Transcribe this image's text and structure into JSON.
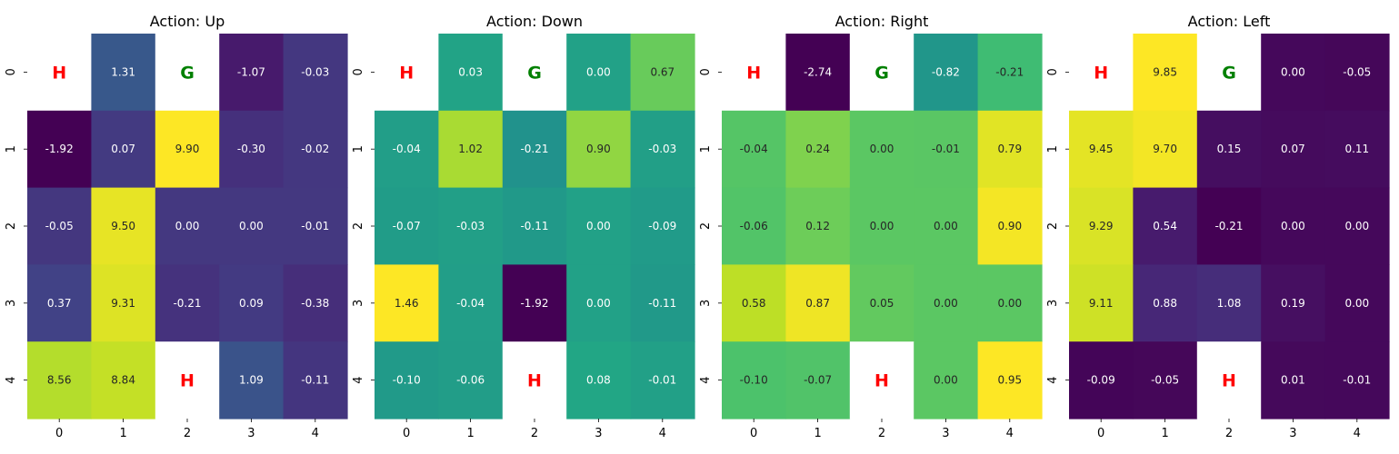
{
  "chart_data": [
    {
      "type": "heatmap",
      "title": "Action: Up",
      "x_ticks": [
        "0",
        "1",
        "2",
        "3",
        "4"
      ],
      "y_ticks": [
        "0",
        "1",
        "2",
        "3",
        "4"
      ],
      "colormap": "viridis",
      "vmin": -1.92,
      "vmax": 9.9,
      "values": [
        [
          "H",
          1.31,
          "G",
          -1.07,
          -0.03
        ],
        [
          -1.92,
          0.07,
          9.9,
          -0.3,
          -0.02
        ],
        [
          -0.05,
          9.5,
          0.0,
          0.0,
          -0.01
        ],
        [
          0.37,
          9.31,
          -0.21,
          0.09,
          -0.38
        ],
        [
          8.56,
          8.84,
          "H",
          1.09,
          -0.11
        ]
      ]
    },
    {
      "type": "heatmap",
      "title": "Action: Down",
      "x_ticks": [
        "0",
        "1",
        "2",
        "3",
        "4"
      ],
      "y_ticks": [
        "0",
        "1",
        "2",
        "3",
        "4"
      ],
      "colormap": "viridis",
      "vmin": -1.92,
      "vmax": 1.46,
      "values": [
        [
          "H",
          0.03,
          "G",
          0.0,
          0.67
        ],
        [
          -0.04,
          1.02,
          -0.21,
          0.9,
          -0.03
        ],
        [
          -0.07,
          -0.03,
          -0.11,
          0.0,
          -0.09
        ],
        [
          1.46,
          -0.04,
          -1.92,
          0.0,
          -0.11
        ],
        [
          -0.1,
          -0.06,
          "H",
          0.08,
          -0.01
        ]
      ]
    },
    {
      "type": "heatmap",
      "title": "Action: Right",
      "x_ticks": [
        "0",
        "1",
        "2",
        "3",
        "4"
      ],
      "y_ticks": [
        "0",
        "1",
        "2",
        "3",
        "4"
      ],
      "colormap": "viridis",
      "vmin": -2.74,
      "vmax": 0.95,
      "values": [
        [
          "H",
          -2.74,
          "G",
          -0.82,
          -0.21
        ],
        [
          -0.04,
          0.24,
          0.0,
          -0.01,
          0.79
        ],
        [
          -0.06,
          0.12,
          0.0,
          0.0,
          0.9
        ],
        [
          0.58,
          0.87,
          0.05,
          0.0,
          0.0
        ],
        [
          -0.1,
          -0.07,
          "H",
          0.0,
          0.95
        ]
      ]
    },
    {
      "type": "heatmap",
      "title": "Action: Left",
      "x_ticks": [
        "0",
        "1",
        "2",
        "3",
        "4"
      ],
      "y_ticks": [
        "0",
        "1",
        "2",
        "3",
        "4"
      ],
      "colormap": "viridis",
      "vmin": -0.21,
      "vmax": 9.85,
      "values": [
        [
          "H",
          9.85,
          "G",
          0.0,
          -0.05
        ],
        [
          9.45,
          9.7,
          0.15,
          0.07,
          0.11
        ],
        [
          9.29,
          0.54,
          -0.21,
          0.0,
          0.0
        ],
        [
          9.11,
          0.88,
          1.08,
          0.19,
          0.0
        ],
        [
          -0.09,
          -0.05,
          "H",
          0.01,
          -0.01
        ]
      ]
    }
  ],
  "colors": {
    "hole": "#ff0000",
    "goal": "#008000",
    "background": "#ffffff"
  }
}
